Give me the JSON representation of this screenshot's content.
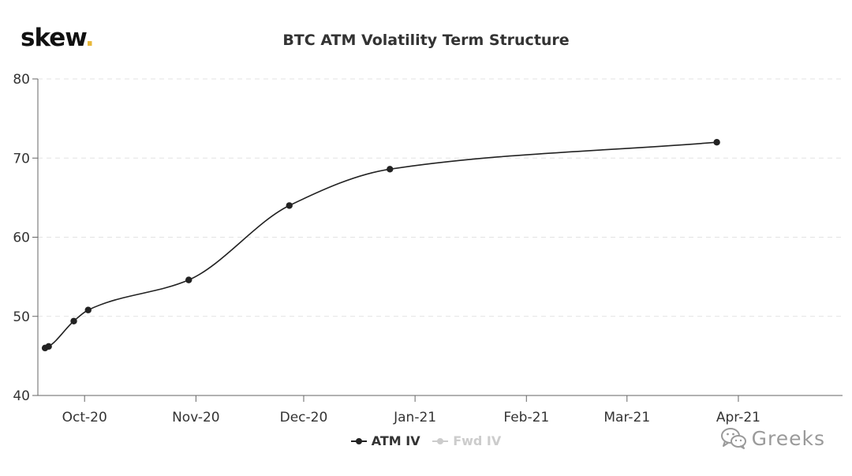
{
  "logo": {
    "text": "skew",
    "dot": "."
  },
  "watermark": {
    "text": "Greeks",
    "icon": "wechat-icon"
  },
  "colors": {
    "atm_series": "#222222",
    "fwd_series": "#cccccc",
    "grid": "#e3e3e3",
    "axis": "#666666",
    "logo_dot": "#e8b83a"
  },
  "chart_data": {
    "type": "line",
    "title": "BTC ATM Volatility Term Structure",
    "xlabel": "",
    "ylabel": "",
    "x_type": "datetime",
    "xlim": [
      "2020-09-18",
      "2021-04-30"
    ],
    "ylim": [
      40,
      80
    ],
    "y_ticks": [
      40,
      50,
      60,
      70,
      80
    ],
    "x_ticks": [
      {
        "date": "2020-10-01",
        "label": "Oct-20"
      },
      {
        "date": "2020-11-01",
        "label": "Nov-20"
      },
      {
        "date": "2020-12-01",
        "label": "Dec-20"
      },
      {
        "date": "2021-01-01",
        "label": "Jan-21"
      },
      {
        "date": "2021-02-01",
        "label": "Feb-21"
      },
      {
        "date": "2021-03-01",
        "label": "Mar-21"
      },
      {
        "date": "2021-04-01",
        "label": "Apr-21"
      }
    ],
    "grid": "horizontal-dashed",
    "legend_position": "bottom-center",
    "series": [
      {
        "name": "ATM IV",
        "visible": true,
        "points": [
          {
            "x": "2020-09-20",
            "y": 46.0
          },
          {
            "x": "2020-09-21",
            "y": 46.2
          },
          {
            "x": "2020-09-28",
            "y": 49.4
          },
          {
            "x": "2020-10-02",
            "y": 50.8
          },
          {
            "x": "2020-10-30",
            "y": 54.6
          },
          {
            "x": "2020-11-27",
            "y": 64.0
          },
          {
            "x": "2020-12-25",
            "y": 68.6
          },
          {
            "x": "2021-03-26",
            "y": 72.0
          }
        ]
      },
      {
        "name": "Fwd IV",
        "visible": false,
        "points": []
      }
    ]
  }
}
